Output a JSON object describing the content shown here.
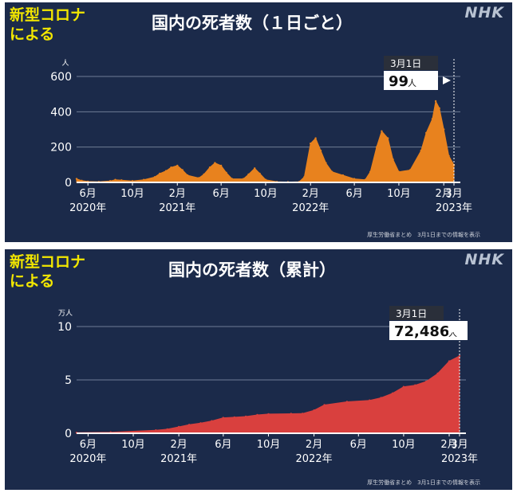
{
  "topic_label": "新型コロナ\nによる",
  "brand": "NHK",
  "source_note": "厚生労働省まとめ　3月1日までの情報を表示",
  "colors": {
    "background": "#1b2a4a",
    "daily_fill": "#e8821e",
    "cumulative_fill": "#d9403e",
    "topic": "#f2e600"
  },
  "chart_data": [
    {
      "type": "area",
      "title": "国内の死者数（１日ごと）",
      "y_unit_label": "人",
      "ylim": [
        0,
        600
      ],
      "y_ticks": [
        0,
        200,
        400,
        600
      ],
      "grid": true,
      "x_range": [
        "2020-05-01",
        "2023-03-01"
      ],
      "x_tick_labels": [
        {
          "date": "2020-06-01",
          "label": "6月",
          "year": "2020年"
        },
        {
          "date": "2020-10-01",
          "label": "10月",
          "year": ""
        },
        {
          "date": "2021-02-01",
          "label": "2月",
          "year": "2021年"
        },
        {
          "date": "2021-06-01",
          "label": "6月",
          "year": ""
        },
        {
          "date": "2021-10-01",
          "label": "10月",
          "year": ""
        },
        {
          "date": "2022-02-01",
          "label": "2月",
          "year": "2022年"
        },
        {
          "date": "2022-06-01",
          "label": "6月",
          "year": ""
        },
        {
          "date": "2022-10-01",
          "label": "10月",
          "year": ""
        },
        {
          "date": "2023-02-01",
          "label": "2月",
          "year": ""
        },
        {
          "date": "2023-03-01",
          "label": "3月",
          "year": "2023年"
        }
      ],
      "x": [
        "2020-05-01",
        "2020-05-15",
        "2020-06-01",
        "2020-07-01",
        "2020-08-01",
        "2020-08-15",
        "2020-09-01",
        "2020-10-01",
        "2020-11-01",
        "2020-12-01",
        "2020-12-15",
        "2021-01-01",
        "2021-01-15",
        "2021-02-01",
        "2021-02-15",
        "2021-03-01",
        "2021-04-01",
        "2021-04-15",
        "2021-05-01",
        "2021-05-15",
        "2021-06-01",
        "2021-06-15",
        "2021-07-01",
        "2021-08-01",
        "2021-08-15",
        "2021-09-01",
        "2021-09-15",
        "2021-10-01",
        "2021-11-01",
        "2021-12-01",
        "2022-01-01",
        "2022-01-15",
        "2022-02-01",
        "2022-02-15",
        "2022-03-01",
        "2022-03-15",
        "2022-04-01",
        "2022-05-01",
        "2022-06-01",
        "2022-07-01",
        "2022-07-15",
        "2022-08-01",
        "2022-08-15",
        "2022-09-01",
        "2022-09-15",
        "2022-10-01",
        "2022-11-01",
        "2022-12-01",
        "2022-12-15",
        "2023-01-01",
        "2023-01-10",
        "2023-01-20",
        "2023-02-01",
        "2023-02-15",
        "2023-03-01"
      ],
      "values": [
        20,
        10,
        5,
        3,
        8,
        15,
        12,
        8,
        15,
        30,
        50,
        65,
        85,
        95,
        70,
        40,
        25,
        45,
        85,
        110,
        95,
        55,
        20,
        20,
        45,
        80,
        50,
        15,
        3,
        2,
        3,
        30,
        220,
        250,
        180,
        110,
        60,
        40,
        20,
        15,
        60,
        200,
        290,
        250,
        130,
        60,
        70,
        180,
        280,
        360,
        460,
        420,
        300,
        150,
        99
      ]
    },
    {
      "type": "area",
      "title": "国内の死者数（累計）",
      "y_unit_label": "万人",
      "ylim": [
        0,
        10
      ],
      "y_ticks": [
        0,
        5,
        10
      ],
      "grid": true,
      "x_range": [
        "2020-05-01",
        "2023-03-01"
      ],
      "x_tick_labels": [
        {
          "date": "2020-06-01",
          "label": "6月",
          "year": "2020年"
        },
        {
          "date": "2020-10-01",
          "label": "10月",
          "year": ""
        },
        {
          "date": "2021-02-01",
          "label": "2月",
          "year": "2021年"
        },
        {
          "date": "2021-06-01",
          "label": "6月",
          "year": ""
        },
        {
          "date": "2021-10-01",
          "label": "10月",
          "year": ""
        },
        {
          "date": "2022-02-01",
          "label": "2月",
          "year": "2022年"
        },
        {
          "date": "2022-06-01",
          "label": "6月",
          "year": ""
        },
        {
          "date": "2022-10-01",
          "label": "10月",
          "year": ""
        },
        {
          "date": "2023-02-01",
          "label": "2月",
          "year": ""
        },
        {
          "date": "2023-03-01",
          "label": "3月",
          "year": "2023年"
        }
      ],
      "x": [
        "2020-05-01",
        "2020-08-01",
        "2020-12-01",
        "2021-01-01",
        "2021-02-01",
        "2021-03-01",
        "2021-04-01",
        "2021-05-01",
        "2021-06-01",
        "2021-07-01",
        "2021-08-01",
        "2021-09-01",
        "2021-10-01",
        "2021-12-01",
        "2022-01-01",
        "2022-02-01",
        "2022-03-01",
        "2022-05-01",
        "2022-07-01",
        "2022-08-01",
        "2022-09-01",
        "2022-10-01",
        "2022-11-01",
        "2022-12-01",
        "2023-01-01",
        "2023-02-01",
        "2023-03-01"
      ],
      "values": [
        0.05,
        0.1,
        0.28,
        0.38,
        0.6,
        0.8,
        0.95,
        1.15,
        1.45,
        1.5,
        1.57,
        1.72,
        1.8,
        1.83,
        1.84,
        2.15,
        2.65,
        2.95,
        3.08,
        3.32,
        3.75,
        4.35,
        4.5,
        4.85,
        5.6,
        6.75,
        7.25
      ]
    }
  ],
  "callouts": [
    {
      "date_label": "3月1日",
      "value": "99",
      "unit": "人"
    },
    {
      "date_label": "3月1日",
      "value": "72,486",
      "unit": "人"
    }
  ]
}
